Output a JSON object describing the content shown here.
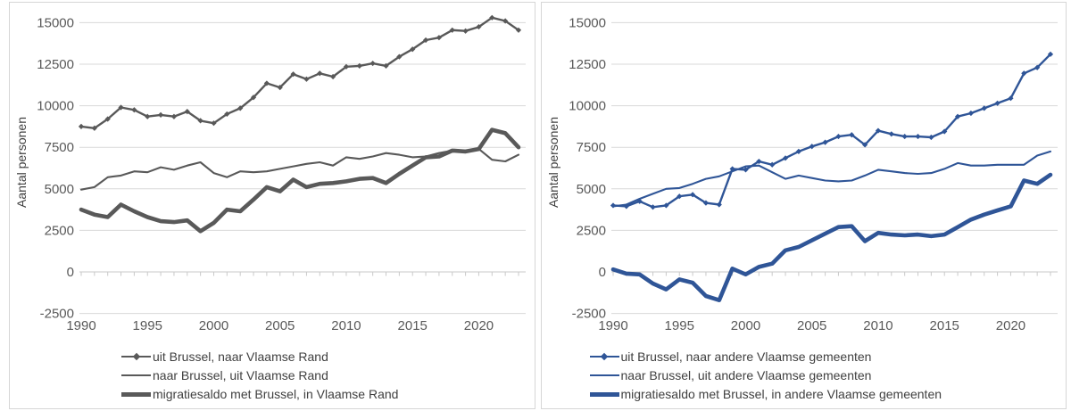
{
  "colors": {
    "left_series": "#595959",
    "right_series": "#2f5597",
    "gridline": "#d9d9d9",
    "axis_line": "#c9c9c9",
    "tick_text": "#595959",
    "legend_text": "#404040",
    "panel_border": "#d6d6d6",
    "background": "#ffffff"
  },
  "chart_data": [
    {
      "type": "line",
      "title": "",
      "ylabel": "Aantal personen",
      "xlabel": "",
      "grid": true,
      "legend_position": "bottom",
      "ylim": [
        -2500,
        15000
      ],
      "y_ticks": [
        -2500,
        0,
        2500,
        5000,
        7500,
        10000,
        12500,
        15000
      ],
      "x_ticks": [
        1990,
        1995,
        2000,
        2005,
        2010,
        2015,
        2020
      ],
      "x": [
        1990,
        1991,
        1992,
        1993,
        1994,
        1995,
        1996,
        1997,
        1998,
        1999,
        2000,
        2001,
        2002,
        2003,
        2004,
        2005,
        2006,
        2007,
        2008,
        2009,
        2010,
        2011,
        2012,
        2013,
        2014,
        2015,
        2016,
        2017,
        2018,
        2019,
        2020,
        2021,
        2022,
        2023
      ],
      "series": [
        {
          "name": "uit Brussel, naar Vlaamse Rand",
          "style": "marker",
          "values": [
            8750,
            8650,
            9200,
            9900,
            9750,
            9350,
            9450,
            9350,
            9650,
            9100,
            8950,
            9500,
            9850,
            10500,
            11350,
            11100,
            11900,
            11600,
            11950,
            11750,
            12350,
            12400,
            12550,
            12400,
            12950,
            13400,
            13950,
            14100,
            14550,
            14500,
            14750,
            15300,
            15100,
            14550
          ]
        },
        {
          "name": "naar Brussel, uit Vlaamse Rand",
          "style": "thin",
          "values": [
            4950,
            5100,
            5700,
            5800,
            6050,
            6000,
            6300,
            6150,
            6400,
            6600,
            5950,
            5700,
            6050,
            6000,
            6050,
            6200,
            6350,
            6500,
            6600,
            6400,
            6900,
            6800,
            6950,
            7150,
            7050,
            6900,
            6950,
            7150,
            7300,
            7300,
            7400,
            6750,
            6650,
            7050
          ]
        },
        {
          "name": "migratiesaldo met Brussel, in Vlaamse Rand",
          "style": "thick",
          "values": [
            3750,
            3450,
            3300,
            4050,
            3650,
            3300,
            3050,
            3000,
            3100,
            2450,
            2950,
            3750,
            3650,
            4350,
            5100,
            4850,
            5550,
            5100,
            5300,
            5350,
            5450,
            5600,
            5650,
            5350,
            5900,
            6400,
            6900,
            6950,
            7300,
            7250,
            7400,
            8550,
            8350,
            7500
          ]
        }
      ]
    },
    {
      "type": "line",
      "title": "",
      "ylabel": "Aantal personen",
      "xlabel": "",
      "grid": true,
      "legend_position": "bottom",
      "ylim": [
        -2500,
        15000
      ],
      "y_ticks": [
        -2500,
        0,
        2500,
        5000,
        7500,
        10000,
        12500,
        15000
      ],
      "x_ticks": [
        1990,
        1995,
        2000,
        2005,
        2010,
        2015,
        2020
      ],
      "x": [
        1990,
        1991,
        1992,
        1993,
        1994,
        1995,
        1996,
        1997,
        1998,
        1999,
        2000,
        2001,
        2002,
        2003,
        2004,
        2005,
        2006,
        2007,
        2008,
        2009,
        2010,
        2011,
        2012,
        2013,
        2014,
        2015,
        2016,
        2017,
        2018,
        2019,
        2020,
        2021,
        2022,
        2023
      ],
      "series": [
        {
          "name": "uit Brussel, naar andere Vlaamse gemeenten",
          "style": "marker",
          "values": [
            4000,
            3950,
            4250,
            3900,
            4000,
            4550,
            4650,
            4150,
            4050,
            6200,
            6150,
            6650,
            6450,
            6850,
            7250,
            7550,
            7800,
            8150,
            8250,
            7650,
            8500,
            8300,
            8150,
            8150,
            8100,
            8450,
            9350,
            9550,
            9850,
            10150,
            10450,
            11950,
            12300,
            13100
          ]
        },
        {
          "name": "naar Brussel, uit andere Vlaamse gemeenten",
          "style": "thin",
          "values": [
            3950,
            4050,
            4400,
            4700,
            5000,
            5050,
            5300,
            5600,
            5750,
            6050,
            6350,
            6400,
            6000,
            5600,
            5800,
            5650,
            5500,
            5450,
            5500,
            5800,
            6150,
            6050,
            5950,
            5900,
            5950,
            6200,
            6550,
            6400,
            6400,
            6450,
            6450,
            6450,
            7000,
            7250
          ]
        },
        {
          "name": "migratiesaldo met Brussel, in andere Vlaamse gemeenten",
          "style": "thick",
          "values": [
            150,
            -100,
            -150,
            -700,
            -1050,
            -450,
            -650,
            -1450,
            -1700,
            200,
            -150,
            300,
            500,
            1300,
            1500,
            1900,
            2300,
            2700,
            2750,
            1850,
            2350,
            2250,
            2200,
            2250,
            2150,
            2250,
            2700,
            3150,
            3450,
            3700,
            3950,
            5500,
            5300,
            5850
          ]
        }
      ]
    }
  ]
}
